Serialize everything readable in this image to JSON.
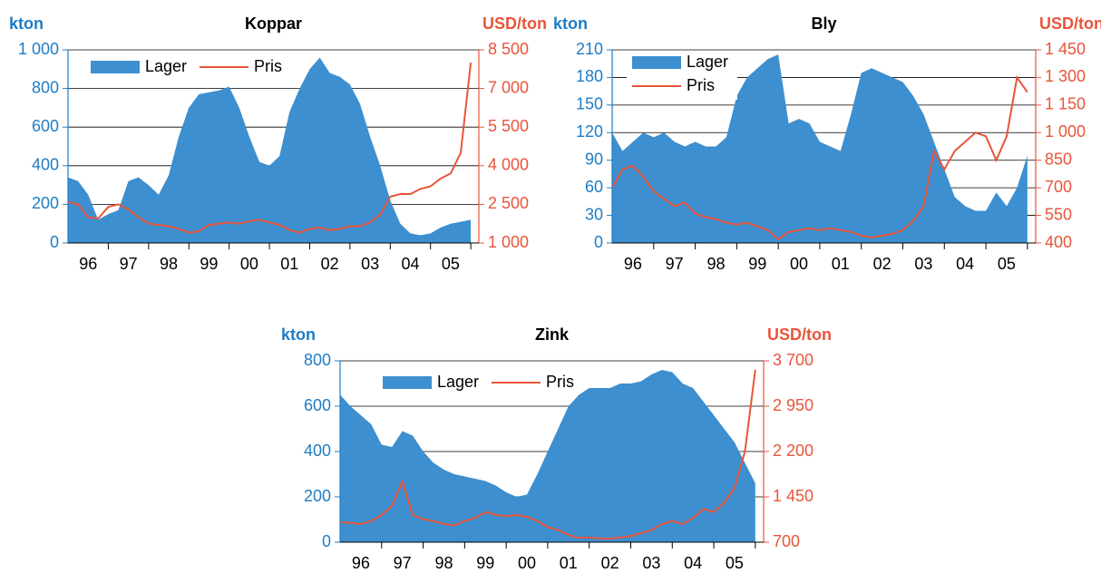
{
  "chart_data": [
    {
      "type": "combo",
      "title": "Koppar",
      "ylabel": "kton",
      "y2label": "USD/ton",
      "legend": "upper left",
      "legend_direction": "horizontal",
      "grid": true,
      "x": [
        96,
        96.25,
        96.5,
        96.75,
        97,
        97.25,
        97.5,
        97.75,
        98,
        98.25,
        98.5,
        98.75,
        99,
        99.25,
        99.5,
        99.75,
        100,
        100.25,
        100.5,
        100.75,
        101,
        101.25,
        101.5,
        101.75,
        102,
        102.25,
        102.5,
        102.75,
        103,
        103.25,
        103.5,
        103.75,
        104,
        104.25,
        104.5,
        104.75,
        105,
        105.25,
        105.5,
        105.75,
        106
      ],
      "xlim": [
        96,
        106.2
      ],
      "xticks": [
        {
          "value": 96.5,
          "label": "96"
        },
        {
          "value": 97.5,
          "label": "97"
        },
        {
          "value": 98.5,
          "label": "98"
        },
        {
          "value": 99.5,
          "label": "99"
        },
        {
          "value": 100.5,
          "label": "00"
        },
        {
          "value": 101.5,
          "label": "01"
        },
        {
          "value": 102.5,
          "label": "02"
        },
        {
          "value": 103.5,
          "label": "03"
        },
        {
          "value": 104.5,
          "label": "04"
        },
        {
          "value": 105.5,
          "label": "05"
        }
      ],
      "ylim": [
        0,
        1000
      ],
      "yticks": [
        0,
        200,
        400,
        600,
        800,
        {
          "value": 1000,
          "label": "1 000"
        }
      ],
      "y2lim": [
        1000,
        8500
      ],
      "y2ticks": [
        {
          "value": 1000,
          "label": "1 000"
        },
        {
          "value": 2500,
          "label": "2 500"
        },
        {
          "value": 4000,
          "label": "4 000"
        },
        {
          "value": 5500,
          "label": "5 500"
        },
        {
          "value": 7000,
          "label": "7 000"
        },
        {
          "value": 8500,
          "label": "8 500"
        }
      ],
      "series": [
        {
          "name": "Lager",
          "type": "area",
          "color": "#3d8fcf",
          "values": [
            340,
            320,
            250,
            120,
            150,
            170,
            320,
            340,
            300,
            250,
            350,
            550,
            700,
            770,
            780,
            790,
            810,
            700,
            550,
            420,
            400,
            450,
            680,
            800,
            900,
            960,
            880,
            860,
            820,
            720,
            550,
            400,
            220,
            100,
            50,
            40,
            50,
            80,
            100,
            110,
            120
          ]
        },
        {
          "name": "Pris",
          "type": "line",
          "axis": "y2",
          "color": "#e8553a",
          "values": [
            2600,
            2500,
            2000,
            1950,
            2400,
            2500,
            2300,
            2000,
            1750,
            1700,
            1650,
            1550,
            1400,
            1450,
            1700,
            1750,
            1800,
            1750,
            1850,
            1900,
            1800,
            1700,
            1500,
            1400,
            1550,
            1600,
            1500,
            1550,
            1650,
            1650,
            1800,
            2100,
            2800,
            2900,
            2900,
            3100,
            3200,
            3500,
            3700,
            4500,
            8000
          ]
        }
      ]
    },
    {
      "type": "combo",
      "title": "Bly",
      "ylabel": "kton",
      "y2label": "USD/ton",
      "legend": "upper left",
      "legend_direction": "vertical",
      "grid": true,
      "x": [
        96,
        96.25,
        96.5,
        96.75,
        97,
        97.25,
        97.5,
        97.75,
        98,
        98.25,
        98.5,
        98.75,
        99,
        99.25,
        99.5,
        99.75,
        100,
        100.25,
        100.5,
        100.75,
        101,
        101.25,
        101.5,
        101.75,
        102,
        102.25,
        102.5,
        102.75,
        103,
        103.25,
        103.5,
        103.75,
        104,
        104.25,
        104.5,
        104.75,
        105,
        105.25,
        105.5,
        105.75,
        106
      ],
      "xlim": [
        96,
        106.2
      ],
      "xticks": [
        {
          "value": 96.5,
          "label": "96"
        },
        {
          "value": 97.5,
          "label": "97"
        },
        {
          "value": 98.5,
          "label": "98"
        },
        {
          "value": 99.5,
          "label": "99"
        },
        {
          "value": 100.5,
          "label": "00"
        },
        {
          "value": 101.5,
          "label": "01"
        },
        {
          "value": 102.5,
          "label": "02"
        },
        {
          "value": 103.5,
          "label": "03"
        },
        {
          "value": 104.5,
          "label": "04"
        },
        {
          "value": 105.5,
          "label": "05"
        }
      ],
      "ylim": [
        0,
        210
      ],
      "yticks": [
        0,
        30,
        60,
        90,
        120,
        150,
        180,
        210
      ],
      "y2lim": [
        400,
        1450
      ],
      "y2ticks": [
        400,
        550,
        700,
        850,
        {
          "value": 1000,
          "label": "1 000"
        },
        {
          "value": 1150,
          "label": "1 150"
        },
        {
          "value": 1300,
          "label": "1 300"
        },
        {
          "value": 1450,
          "label": "1 450"
        }
      ],
      "series": [
        {
          "name": "Lager",
          "type": "area",
          "color": "#3d8fcf",
          "values": [
            120,
            100,
            110,
            120,
            115,
            120,
            110,
            105,
            110,
            105,
            105,
            115,
            160,
            180,
            190,
            200,
            205,
            130,
            135,
            130,
            110,
            105,
            100,
            140,
            185,
            190,
            185,
            180,
            175,
            160,
            140,
            110,
            80,
            50,
            40,
            35,
            35,
            55,
            40,
            60,
            95
          ]
        },
        {
          "name": "Pris",
          "type": "line",
          "axis": "y2",
          "color": "#e8553a",
          "values": [
            700,
            800,
            820,
            760,
            680,
            640,
            600,
            620,
            560,
            540,
            530,
            510,
            500,
            510,
            490,
            470,
            420,
            460,
            470,
            480,
            470,
            480,
            470,
            460,
            440,
            430,
            440,
            450,
            470,
            520,
            600,
            900,
            800,
            900,
            950,
            1000,
            980,
            850,
            980,
            1300,
            1220
          ]
        }
      ]
    },
    {
      "type": "combo",
      "title": "Zink",
      "ylabel": "kton",
      "y2label": "USD/ton",
      "legend": "upper left",
      "legend_direction": "horizontal",
      "grid": true,
      "x": [
        96,
        96.25,
        96.5,
        96.75,
        97,
        97.25,
        97.5,
        97.75,
        98,
        98.25,
        98.5,
        98.75,
        99,
        99.25,
        99.5,
        99.75,
        100,
        100.25,
        100.5,
        100.75,
        101,
        101.25,
        101.5,
        101.75,
        102,
        102.25,
        102.5,
        102.75,
        103,
        103.25,
        103.5,
        103.75,
        104,
        104.25,
        104.5,
        104.75,
        105,
        105.25,
        105.5,
        105.75,
        106
      ],
      "xlim": [
        96,
        106.2
      ],
      "xticks": [
        {
          "value": 96.5,
          "label": "96"
        },
        {
          "value": 97.5,
          "label": "97"
        },
        {
          "value": 98.5,
          "label": "98"
        },
        {
          "value": 99.5,
          "label": "99"
        },
        {
          "value": 100.5,
          "label": "00"
        },
        {
          "value": 101.5,
          "label": "01"
        },
        {
          "value": 102.5,
          "label": "02"
        },
        {
          "value": 103.5,
          "label": "03"
        },
        {
          "value": 104.5,
          "label": "04"
        },
        {
          "value": 105.5,
          "label": "05"
        }
      ],
      "ylim": [
        0,
        800
      ],
      "yticks": [
        0,
        200,
        400,
        600,
        800
      ],
      "y2lim": [
        700,
        3700
      ],
      "y2ticks": [
        700,
        {
          "value": 1450,
          "label": "1 450"
        },
        {
          "value": 2200,
          "label": "2 200"
        },
        {
          "value": 2950,
          "label": "2 950"
        },
        {
          "value": 3700,
          "label": "3 700"
        }
      ],
      "series": [
        {
          "name": "Lager",
          "type": "area",
          "color": "#3d8fcf",
          "values": [
            650,
            600,
            560,
            520,
            430,
            420,
            490,
            470,
            400,
            350,
            320,
            300,
            290,
            280,
            270,
            250,
            220,
            200,
            210,
            300,
            400,
            500,
            600,
            650,
            680,
            680,
            680,
            700,
            700,
            710,
            740,
            760,
            750,
            700,
            680,
            620,
            560,
            500,
            440,
            350,
            260
          ]
        },
        {
          "name": "Pris",
          "type": "line",
          "axis": "y2",
          "color": "#e8553a",
          "values": [
            1030,
            1020,
            1000,
            1050,
            1150,
            1300,
            1700,
            1150,
            1080,
            1050,
            1000,
            980,
            1050,
            1100,
            1200,
            1150,
            1130,
            1150,
            1120,
            1050,
            950,
            900,
            820,
            770,
            780,
            760,
            760,
            780,
            800,
            850,
            900,
            1000,
            1050,
            1000,
            1100,
            1250,
            1200,
            1350,
            1600,
            2200,
            3550
          ]
        }
      ]
    }
  ]
}
